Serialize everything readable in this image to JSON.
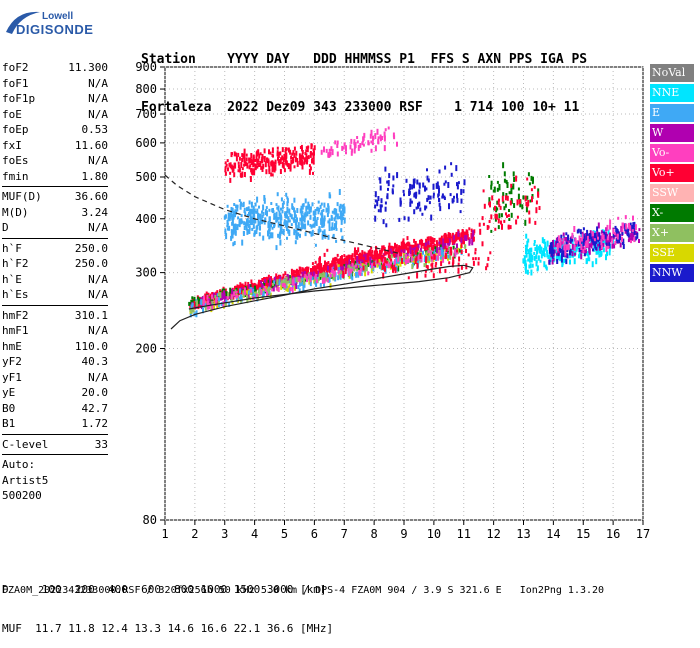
{
  "logo": {
    "top": "Lowell",
    "bottom": "DIGISONDE"
  },
  "header": {
    "line1": "Station    YYYY DAY   DDD HHMMSS P1  FFS S AXN PPS IGA PS",
    "line2": "Fortaleza  2022 Dez09 343 233000 RSF    1 714 100 10+ 11"
  },
  "params_group1": [
    {
      "name": "foF2",
      "value": "11.300"
    },
    {
      "name": "foF1",
      "value": "N/A"
    },
    {
      "name": "foF1p",
      "value": "N/A"
    },
    {
      "name": "foE",
      "value": "N/A"
    },
    {
      "name": "foEp",
      "value": "0.53"
    },
    {
      "name": "fxI",
      "value": "11.60"
    },
    {
      "name": "foEs",
      "value": "N/A"
    },
    {
      "name": "fmin",
      "value": "1.80"
    }
  ],
  "params_group2": [
    {
      "name": "MUF(D)",
      "value": "36.60"
    },
    {
      "name": "M(D)",
      "value": "3.24"
    },
    {
      "name": "D",
      "value": "N/A"
    }
  ],
  "params_group3": [
    {
      "name": "h`F",
      "value": "250.0"
    },
    {
      "name": "h`F2",
      "value": "250.0"
    },
    {
      "name": "h`E",
      "value": "N/A"
    },
    {
      "name": "h`Es",
      "value": "N/A"
    }
  ],
  "params_group4": [
    {
      "name": "hmF2",
      "value": "310.1"
    },
    {
      "name": "hmF1",
      "value": "N/A"
    },
    {
      "name": "hmE",
      "value": "110.0"
    },
    {
      "name": "yF2",
      "value": "40.3"
    },
    {
      "name": "yF1",
      "value": "N/A"
    },
    {
      "name": "yE",
      "value": "20.0"
    },
    {
      "name": "B0",
      "value": "42.7"
    },
    {
      "name": "B1",
      "value": "1.72"
    }
  ],
  "clevel": {
    "name": "C-level",
    "value": "33"
  },
  "auto": {
    "line1": "Auto:",
    "line2": "Artist5",
    "line3": "500200"
  },
  "legend": [
    {
      "label": "NoVal",
      "color": "#808080"
    },
    {
      "label": "NNE",
      "color": "#00e5ff"
    },
    {
      "label": "E",
      "color": "#3fa9f5"
    },
    {
      "label": "W",
      "color": "#b000b0"
    },
    {
      "label": "Vo-",
      "color": "#ff3fbf"
    },
    {
      "label": "Vo+",
      "color": "#ff0033"
    },
    {
      "label": "SSW",
      "color": "#ffb3b3"
    },
    {
      "label": "X-",
      "color": "#007a00"
    },
    {
      "label": "X+",
      "color": "#8fc060"
    },
    {
      "label": "SSE",
      "color": "#d8d800"
    },
    {
      "label": "NNW",
      "color": "#1a1acc"
    }
  ],
  "footer": {
    "line1": "D     100  200  400  600  800 1000 1500 3000 [km]",
    "line2": "MUF  11.7 11.8 12.4 13.3 14.6 16.6 22.1 36.6 [MHz]",
    "line3": "FZA0M_2022343233000.RSF / 320fx256h 50 kHz 5.0 km / DPS-4 FZA0M 904 / 3.9 S 321.6 E   Ion2Png 1.3.20"
  },
  "chart_data": {
    "type": "scatter",
    "x_ticks": [
      "1",
      "2",
      "3",
      "4",
      "5",
      "6",
      "7",
      "8",
      "9",
      "10",
      "11",
      "12",
      "13",
      "14",
      "15",
      "16",
      "17"
    ],
    "y_ticks": [
      "80",
      "200",
      "300",
      "400",
      "500",
      "600",
      "700",
      "800",
      "900"
    ],
    "xlim": [
      1,
      17
    ],
    "ylim": [
      80,
      900
    ],
    "y_scale": "log",
    "grid": true,
    "legend_position": "right",
    "profile_solid": {
      "x": [
        1.2,
        1.5,
        2.0,
        3.0,
        4.0,
        5.0,
        6.0,
        7.0,
        8.0,
        9.0,
        10.0,
        10.5,
        11.0,
        11.3,
        11.2,
        10.5,
        9.5,
        8.0,
        6.0,
        4.0,
        2.5,
        1.8
      ],
      "y": [
        222,
        232,
        240,
        250,
        258,
        266,
        275,
        282,
        290,
        298,
        306,
        310,
        312,
        308,
        300,
        292,
        286,
        280,
        272,
        262,
        252,
        247
      ]
    },
    "profile_dashed": {
      "x": [
        1.0,
        1.4,
        2.0,
        3.0,
        4.0,
        5.0,
        6.0,
        7.0,
        8.0,
        8.8
      ],
      "y": [
        505,
        478,
        450,
        420,
        400,
        385,
        370,
        356,
        343,
        333
      ]
    },
    "clusters": [
      {
        "series": "Vo+",
        "x": [
          1.8,
          11.3
        ],
        "y": [
          255,
          375
        ],
        "points": 700,
        "spread": 9
      },
      {
        "series": "X-",
        "x": [
          1.8,
          11.0
        ],
        "y": [
          258,
          345
        ],
        "points": 160,
        "spread": 8
      },
      {
        "series": "SSE",
        "x": [
          1.8,
          11.0
        ],
        "y": [
          250,
          345
        ],
        "points": 140,
        "spread": 10
      },
      {
        "series": "W",
        "x": [
          1.8,
          11.3
        ],
        "y": [
          252,
          365
        ],
        "points": 160,
        "spread": 9
      },
      {
        "series": "E",
        "x": [
          1.8,
          11.0
        ],
        "y": [
          250,
          340
        ],
        "points": 140,
        "spread": 11
      },
      {
        "series": "X+",
        "x": [
          1.8,
          11.0
        ],
        "y": [
          252,
          345
        ],
        "points": 120,
        "spread": 10
      },
      {
        "series": "Vo-",
        "x": [
          2.2,
          11.0
        ],
        "y": [
          255,
          345
        ],
        "points": 120,
        "spread": 10
      },
      {
        "series": "NNE",
        "x": [
          13.0,
          16.0
        ],
        "y": [
          330,
          355
        ],
        "points": 230,
        "spread": 22
      },
      {
        "series": "W",
        "x": [
          13.8,
          16.8
        ],
        "y": [
          340,
          375
        ],
        "points": 160,
        "spread": 18
      },
      {
        "series": "NNW",
        "x": [
          13.8,
          16.8
        ],
        "y": [
          340,
          380
        ],
        "points": 120,
        "spread": 20
      },
      {
        "series": "Vo-",
        "x": [
          13.8,
          16.8
        ],
        "y": [
          345,
          380
        ],
        "points": 60,
        "spread": 20
      },
      {
        "series": "E",
        "x": [
          3.0,
          7.0
        ],
        "y": [
          400,
          405
        ],
        "points": 420,
        "spread": 30
      },
      {
        "series": "Vo+",
        "x": [
          3.0,
          6.0
        ],
        "y": [
          535,
          560
        ],
        "points": 220,
        "spread": 20
      },
      {
        "series": "Vo-",
        "x": [
          6.2,
          8.8
        ],
        "y": [
          575,
          635
        ],
        "points": 60,
        "spread": 15
      },
      {
        "series": "NNW",
        "x": [
          8.0,
          11.0
        ],
        "y": [
          460,
          470
        ],
        "points": 120,
        "spread": 35
      },
      {
        "series": "Vo+",
        "x": [
          6.0,
          11.8
        ],
        "y": [
          320,
          330
        ],
        "points": 130,
        "spread": 25
      },
      {
        "series": "X-",
        "x": [
          11.8,
          13.5
        ],
        "y": [
          440,
          480
        ],
        "points": 60,
        "spread": 40
      },
      {
        "series": "Vo+",
        "x": [
          11.5,
          13.5
        ],
        "y": [
          410,
          440
        ],
        "points": 60,
        "spread": 40
      }
    ]
  }
}
